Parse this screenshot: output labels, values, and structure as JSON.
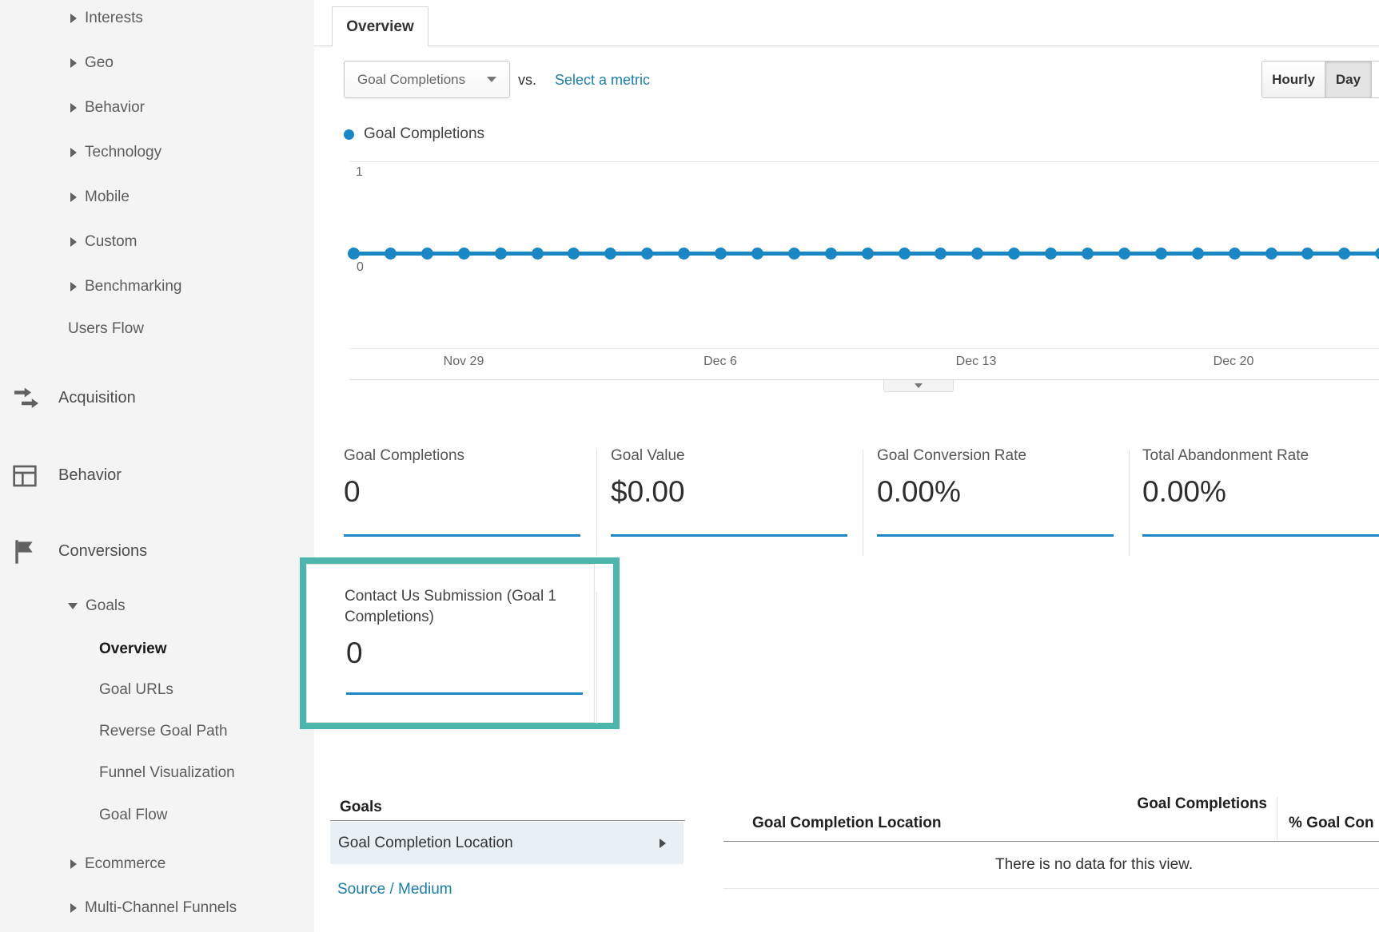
{
  "sidebar": {
    "report_items": [
      {
        "label": "Interests"
      },
      {
        "label": "Geo"
      },
      {
        "label": "Behavior"
      },
      {
        "label": "Technology"
      },
      {
        "label": "Mobile"
      },
      {
        "label": "Custom"
      },
      {
        "label": "Benchmarking"
      },
      {
        "label": "Users Flow"
      }
    ],
    "sections": [
      {
        "label": "Acquisition",
        "icon": "acquisition-icon"
      },
      {
        "label": "Behavior",
        "icon": "behavior-icon"
      },
      {
        "label": "Conversions",
        "icon": "conversions-icon"
      }
    ],
    "goals_group": {
      "label": "Goals",
      "expanded": true,
      "items": [
        {
          "label": "Overview",
          "active": true
        },
        {
          "label": "Goal URLs",
          "active": false
        },
        {
          "label": "Reverse Goal Path",
          "active": false
        },
        {
          "label": "Funnel Visualization",
          "active": false
        },
        {
          "label": "Goal Flow",
          "active": false
        }
      ]
    },
    "more_items": [
      {
        "label": "Ecommerce"
      },
      {
        "label": "Multi-Channel Funnels"
      }
    ]
  },
  "header": {
    "tab": "Overview"
  },
  "controls": {
    "metric_selector_value": "Goal Completions",
    "vs_label": "vs.",
    "select_metric_link": "Select a metric",
    "granularity": [
      {
        "label": "Hourly",
        "selected": false
      },
      {
        "label": "Day",
        "selected": true
      }
    ]
  },
  "chart_data": {
    "type": "line",
    "legend": "Goal Completions",
    "series": [
      {
        "name": "Goal Completions",
        "values": [
          0,
          0,
          0,
          0,
          0,
          0,
          0,
          0,
          0,
          0,
          0,
          0,
          0,
          0,
          0,
          0,
          0,
          0,
          0,
          0,
          0,
          0,
          0,
          0,
          0,
          0,
          0,
          0,
          0
        ]
      }
    ],
    "x_tick_labels": [
      "Nov 29",
      "Dec 6",
      "Dec 13",
      "Dec 20"
    ],
    "y_ticks": [
      0,
      1
    ],
    "ylim": [
      0,
      1
    ],
    "grid": "horizontal",
    "legend_position": "top-left",
    "line_color": "#1a86c4"
  },
  "scorecards": [
    {
      "title": "Goal Completions",
      "value": "0"
    },
    {
      "title": "Goal Value",
      "value": "$0.00"
    },
    {
      "title": "Goal Conversion Rate",
      "value": "0.00%"
    },
    {
      "title": "Total Abandonment Rate",
      "value": "0.00%"
    }
  ],
  "highlighted_card": {
    "title": "Contact Us Submission (Goal 1 Completions)",
    "value": "0",
    "highlight_color": "#4db6ac"
  },
  "bottom": {
    "panel": {
      "title": "Goals",
      "selected_dimension": "Goal Completion Location",
      "link": "Source / Medium"
    },
    "table": {
      "col_location": "Goal Completion Location",
      "col_completions": "Goal Completions",
      "col_pct": "% Goal Con",
      "empty_message": "There is no data for this view."
    }
  },
  "colors": {
    "accent_blue": "#1a86c4",
    "highlight_teal": "#4db6ac",
    "link_blue": "#1b7fa8",
    "sidebar_bg": "#f4f4f4",
    "selected_row_bg": "#e8eff5"
  }
}
